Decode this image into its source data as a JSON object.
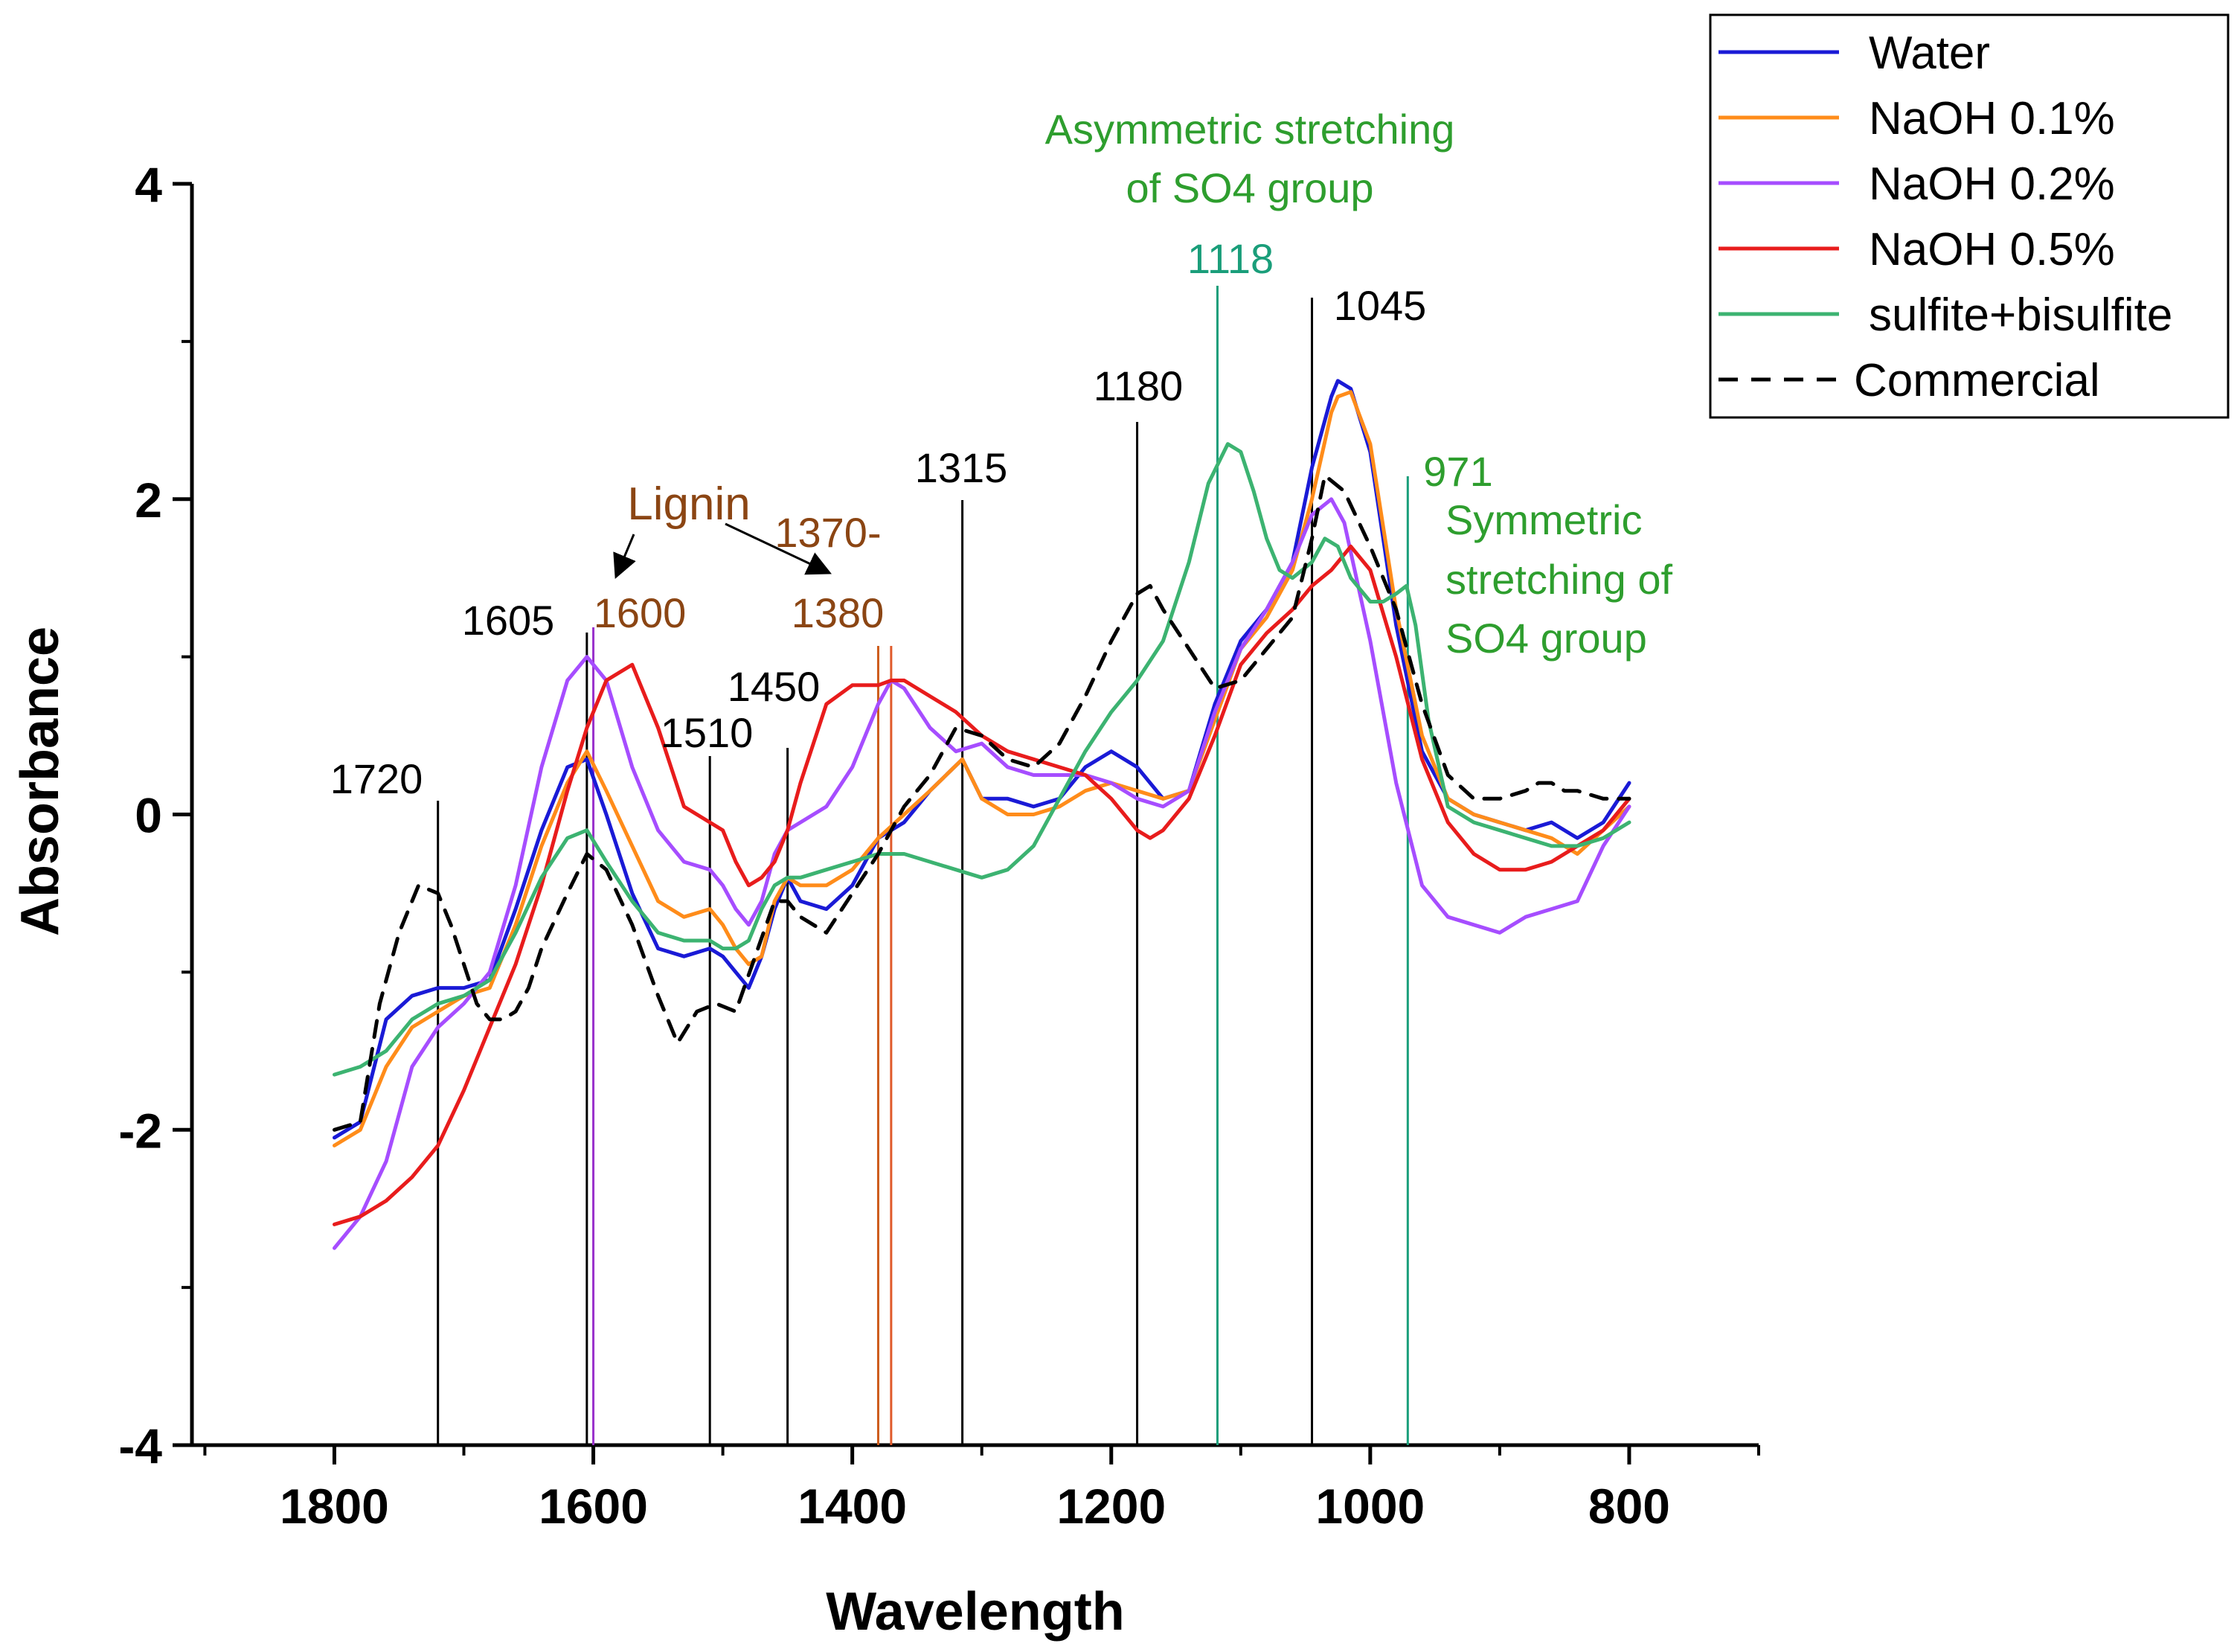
{
  "chart_data": {
    "type": "line",
    "title": "",
    "xlabel": "Wavelength",
    "ylabel": "Absorbance",
    "xlim": [
      1910,
      700
    ],
    "ylim": [
      -4,
      4
    ],
    "x_reversed": true,
    "grid": false,
    "legend_position": "top-right",
    "x_ticks": [
      1800,
      1600,
      1400,
      1200,
      1000,
      800
    ],
    "x_tick_labels": [
      "1800",
      "1600",
      "1400",
      "1200",
      "1000",
      "800"
    ],
    "y_ticks": [
      -4,
      -2,
      0,
      2,
      4
    ],
    "y_tick_labels": [
      "-4",
      "-2",
      "0",
      "2",
      "4"
    ],
    "series": [
      {
        "name": "Water",
        "color": "#1a1ad6",
        "dash": "solid",
        "x": [
          1800,
          1780,
          1760,
          1740,
          1720,
          1700,
          1680,
          1660,
          1640,
          1620,
          1605,
          1590,
          1570,
          1550,
          1530,
          1510,
          1500,
          1490,
          1480,
          1470,
          1460,
          1450,
          1440,
          1420,
          1400,
          1380,
          1360,
          1340,
          1315,
          1300,
          1280,
          1260,
          1240,
          1220,
          1200,
          1180,
          1160,
          1140,
          1120,
          1100,
          1080,
          1060,
          1045,
          1030,
          1025,
          1015,
          1000,
          980,
          960,
          940,
          920,
          900,
          880,
          860,
          840,
          820,
          800
        ],
        "y": [
          -2.05,
          -1.95,
          -1.3,
          -1.15,
          -1.1,
          -1.1,
          -1.05,
          -0.6,
          -0.1,
          0.3,
          0.35,
          0.0,
          -0.5,
          -0.85,
          -0.9,
          -0.85,
          -0.9,
          -1.0,
          -1.1,
          -0.9,
          -0.6,
          -0.4,
          -0.55,
          -0.6,
          -0.45,
          -0.15,
          -0.05,
          0.15,
          0.35,
          0.1,
          0.1,
          0.05,
          0.1,
          0.3,
          0.4,
          0.3,
          0.1,
          0.15,
          0.7,
          1.1,
          1.3,
          1.6,
          2.2,
          2.65,
          2.75,
          2.7,
          2.3,
          1.2,
          0.4,
          0.1,
          0.0,
          -0.05,
          -0.1,
          -0.05,
          -0.15,
          -0.05,
          0.2
        ]
      },
      {
        "name": "NaOH 0.1%",
        "color": "#ff8c1a",
        "dash": "solid",
        "x": [
          1800,
          1780,
          1760,
          1740,
          1720,
          1700,
          1680,
          1660,
          1640,
          1620,
          1605,
          1590,
          1570,
          1550,
          1530,
          1510,
          1500,
          1490,
          1480,
          1470,
          1460,
          1450,
          1440,
          1420,
          1400,
          1380,
          1360,
          1340,
          1315,
          1300,
          1280,
          1260,
          1240,
          1220,
          1200,
          1180,
          1160,
          1140,
          1120,
          1100,
          1080,
          1060,
          1045,
          1030,
          1025,
          1015,
          1000,
          980,
          960,
          940,
          920,
          900,
          880,
          860,
          840,
          820,
          800
        ],
        "y": [
          -2.1,
          -2.0,
          -1.6,
          -1.35,
          -1.25,
          -1.15,
          -1.1,
          -0.7,
          -0.2,
          0.2,
          0.4,
          0.15,
          -0.2,
          -0.55,
          -0.65,
          -0.6,
          -0.7,
          -0.85,
          -0.95,
          -0.9,
          -0.55,
          -0.4,
          -0.45,
          -0.45,
          -0.35,
          -0.15,
          0.0,
          0.15,
          0.35,
          0.1,
          0.0,
          0.0,
          0.05,
          0.15,
          0.2,
          0.15,
          0.1,
          0.15,
          0.6,
          1.05,
          1.25,
          1.55,
          2.0,
          2.55,
          2.65,
          2.68,
          2.35,
          1.3,
          0.5,
          0.1,
          0.0,
          -0.05,
          -0.1,
          -0.15,
          -0.25,
          -0.1,
          0.05
        ]
      },
      {
        "name": "NaOH 0.2%",
        "color": "#a64dff",
        "dash": "solid",
        "x": [
          1800,
          1780,
          1760,
          1740,
          1720,
          1700,
          1680,
          1660,
          1640,
          1620,
          1605,
          1590,
          1570,
          1550,
          1530,
          1510,
          1500,
          1490,
          1480,
          1470,
          1460,
          1450,
          1440,
          1420,
          1400,
          1380,
          1370,
          1360,
          1340,
          1320,
          1300,
          1280,
          1260,
          1240,
          1220,
          1200,
          1180,
          1160,
          1140,
          1120,
          1100,
          1080,
          1060,
          1045,
          1030,
          1020,
          1000,
          980,
          960,
          940,
          920,
          900,
          880,
          860,
          840,
          820,
          800
        ],
        "y": [
          -2.75,
          -2.55,
          -2.2,
          -1.6,
          -1.35,
          -1.2,
          -1.0,
          -0.45,
          0.3,
          0.85,
          1.0,
          0.85,
          0.3,
          -0.1,
          -0.3,
          -0.35,
          -0.45,
          -0.6,
          -0.7,
          -0.55,
          -0.25,
          -0.1,
          -0.05,
          0.05,
          0.3,
          0.7,
          0.85,
          0.8,
          0.55,
          0.4,
          0.45,
          0.3,
          0.25,
          0.25,
          0.25,
          0.2,
          0.1,
          0.05,
          0.15,
          0.65,
          1.05,
          1.3,
          1.6,
          1.9,
          2.0,
          1.85,
          1.1,
          0.2,
          -0.45,
          -0.65,
          -0.7,
          -0.75,
          -0.65,
          -0.6,
          -0.55,
          -0.2,
          0.05
        ]
      },
      {
        "name": "NaOH 0.5%",
        "color": "#e81c1c",
        "dash": "solid",
        "x": [
          1800,
          1780,
          1760,
          1740,
          1720,
          1700,
          1680,
          1660,
          1640,
          1620,
          1605,
          1590,
          1570,
          1550,
          1530,
          1510,
          1500,
          1490,
          1480,
          1470,
          1460,
          1450,
          1440,
          1420,
          1400,
          1380,
          1370,
          1360,
          1340,
          1320,
          1300,
          1280,
          1260,
          1240,
          1220,
          1200,
          1180,
          1170,
          1160,
          1140,
          1120,
          1100,
          1080,
          1060,
          1045,
          1030,
          1015,
          1000,
          980,
          960,
          940,
          920,
          900,
          880,
          860,
          840,
          820,
          800
        ],
        "y": [
          -2.6,
          -2.55,
          -2.45,
          -2.3,
          -2.1,
          -1.75,
          -1.35,
          -0.95,
          -0.45,
          0.15,
          0.55,
          0.85,
          0.95,
          0.55,
          0.05,
          -0.05,
          -0.1,
          -0.3,
          -0.45,
          -0.4,
          -0.3,
          -0.1,
          0.2,
          0.7,
          0.82,
          0.82,
          0.85,
          0.85,
          0.75,
          0.65,
          0.5,
          0.4,
          0.35,
          0.3,
          0.25,
          0.1,
          -0.1,
          -0.15,
          -0.1,
          0.1,
          0.5,
          0.95,
          1.15,
          1.3,
          1.45,
          1.55,
          1.7,
          1.55,
          1.0,
          0.35,
          -0.05,
          -0.25,
          -0.35,
          -0.35,
          -0.3,
          -0.2,
          -0.1,
          0.1
        ]
      },
      {
        "name": "sulfite+bisulfite",
        "color": "#3cb371",
        "dash": "solid",
        "x": [
          1800,
          1780,
          1760,
          1740,
          1720,
          1700,
          1680,
          1660,
          1640,
          1620,
          1605,
          1590,
          1570,
          1550,
          1530,
          1510,
          1500,
          1490,
          1480,
          1470,
          1460,
          1450,
          1440,
          1420,
          1400,
          1380,
          1360,
          1340,
          1320,
          1300,
          1280,
          1260,
          1240,
          1220,
          1200,
          1180,
          1160,
          1140,
          1125,
          1110,
          1100,
          1090,
          1080,
          1070,
          1060,
          1045,
          1035,
          1025,
          1015,
          1000,
          990,
          980,
          972,
          965,
          955,
          940,
          920,
          900,
          880,
          860,
          840,
          820,
          800
        ],
        "y": [
          -1.65,
          -1.6,
          -1.5,
          -1.3,
          -1.2,
          -1.15,
          -1.05,
          -0.75,
          -0.4,
          -0.15,
          -0.1,
          -0.3,
          -0.55,
          -0.75,
          -0.8,
          -0.8,
          -0.85,
          -0.85,
          -0.8,
          -0.6,
          -0.45,
          -0.4,
          -0.4,
          -0.35,
          -0.3,
          -0.25,
          -0.25,
          -0.3,
          -0.35,
          -0.4,
          -0.35,
          -0.2,
          0.1,
          0.4,
          0.65,
          0.85,
          1.1,
          1.6,
          2.1,
          2.35,
          2.3,
          2.05,
          1.75,
          1.55,
          1.5,
          1.6,
          1.75,
          1.7,
          1.5,
          1.35,
          1.35,
          1.4,
          1.45,
          1.2,
          0.6,
          0.05,
          -0.05,
          -0.1,
          -0.15,
          -0.2,
          -0.2,
          -0.15,
          -0.05
        ]
      },
      {
        "name": "Commercial",
        "color": "#000000",
        "dash": "dashed",
        "x": [
          1800,
          1780,
          1765,
          1750,
          1735,
          1720,
          1710,
          1700,
          1690,
          1680,
          1670,
          1660,
          1650,
          1640,
          1620,
          1605,
          1590,
          1570,
          1550,
          1535,
          1520,
          1505,
          1490,
          1475,
          1460,
          1450,
          1440,
          1420,
          1400,
          1380,
          1360,
          1340,
          1320,
          1300,
          1280,
          1260,
          1240,
          1220,
          1200,
          1180,
          1170,
          1160,
          1140,
          1120,
          1100,
          1080,
          1060,
          1045,
          1035,
          1020,
          1000,
          980,
          960,
          940,
          920,
          900,
          880,
          870,
          860,
          850,
          840,
          820,
          800
        ],
        "y": [
          -2.0,
          -1.95,
          -1.2,
          -0.75,
          -0.45,
          -0.5,
          -0.7,
          -0.95,
          -1.2,
          -1.3,
          -1.3,
          -1.25,
          -1.1,
          -0.85,
          -0.5,
          -0.25,
          -0.35,
          -0.7,
          -1.15,
          -1.45,
          -1.25,
          -1.2,
          -1.25,
          -0.9,
          -0.55,
          -0.55,
          -0.65,
          -0.75,
          -0.5,
          -0.25,
          0.05,
          0.25,
          0.55,
          0.5,
          0.35,
          0.3,
          0.45,
          0.75,
          1.1,
          1.4,
          1.45,
          1.3,
          1.05,
          0.8,
          0.85,
          1.05,
          1.25,
          1.75,
          2.15,
          2.05,
          1.7,
          1.3,
          0.7,
          0.25,
          0.1,
          0.1,
          0.15,
          0.2,
          0.2,
          0.15,
          0.15,
          0.1,
          0.1
        ]
      }
    ],
    "annotations": [
      {
        "wavenumber": 1720,
        "label": "1720",
        "color": "#000000"
      },
      {
        "wavenumber": 1605,
        "label": "1605",
        "color": "#000000"
      },
      {
        "wavenumber": 1600,
        "label": "1600",
        "color": "#8b4513"
      },
      {
        "wavenumber": 1510,
        "label": "1510",
        "color": "#000000"
      },
      {
        "wavenumber": 1450,
        "label": "1450",
        "color": "#000000"
      },
      {
        "wavenumber": 1380,
        "label": "1370-",
        "label2": "1380",
        "color": "#8b4513"
      },
      {
        "wavenumber": 1315,
        "label": "1315",
        "color": "#000000"
      },
      {
        "wavenumber": 1180,
        "label": "1180",
        "color": "#000000"
      },
      {
        "wavenumber": 1118,
        "label": "1118",
        "color": "#1a9e7a"
      },
      {
        "wavenumber": 1045,
        "label": "1045",
        "color": "#000000"
      },
      {
        "wavenumber": 971,
        "label": "971",
        "color": "#2e9e2e"
      }
    ],
    "text_annotations": {
      "lignin": "Lignin",
      "asym_line1": "Asymmetric stretching",
      "asym_line2": "of SO4 group",
      "sym_line1": "Symmetric",
      "sym_line2": "stretching of",
      "sym_line3": "SO4 group"
    },
    "colors": {
      "lignin": "#8b4513",
      "asymmetric": "#2e9e2e",
      "symmetric": "#2e9e2e",
      "line1118": "#1a9e7a",
      "line971": "#1a9e7a",
      "line1600": "#9932cc",
      "line1380a": "#cd5c1c",
      "line1380b": "#e05a2a"
    }
  }
}
